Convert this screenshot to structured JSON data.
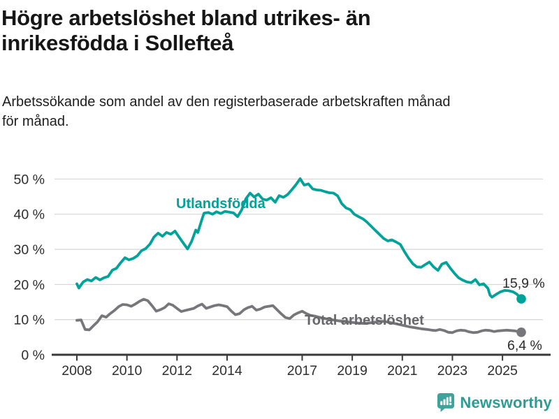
{
  "header": {
    "title_lines": [
      "Högre arbetslöshet bland utrikes- än",
      "inrikesfödda i Sollefteå"
    ],
    "subtitle_lines": [
      "Arbetssökande som andel av den registerbaserade arbetskraften månad",
      "för månad."
    ]
  },
  "chart_data": {
    "type": "line",
    "title": "Högre arbetslöshet bland utrikes- än inrikesfödda i Sollefteå",
    "subtitle": "Arbetssökande som andel av den registerbaserade arbetskraften månad för månad.",
    "unit": "%",
    "grid": "horizontal",
    "legend": "inline-labels",
    "x_axis": {
      "ticks": [
        2008,
        2010,
        2012,
        2014,
        2017,
        2019,
        2021,
        2023,
        2025
      ],
      "labels": [
        "2008",
        "2010",
        "2012",
        "2014",
        "2017",
        "2019",
        "2021",
        "2023",
        "2025"
      ],
      "range": [
        2007.9,
        2025.9
      ]
    },
    "y_axis": {
      "ticks": [
        0,
        10,
        20,
        30,
        40,
        50
      ],
      "labels": [
        "0 %",
        "10 %",
        "20 %",
        "30 %",
        "40 %",
        "50 %"
      ],
      "range": [
        0,
        50
      ]
    },
    "series": [
      {
        "name": "Utlandsfödda",
        "color": "#00A29A",
        "label_color": "#00A29A",
        "end_label": "15,9 %",
        "end_label_color": "#2b2b2b",
        "end_value": 15.9,
        "points": [
          [
            2008.0,
            20.2
          ],
          [
            2008.08,
            19.0
          ],
          [
            2008.25,
            20.7
          ],
          [
            2008.42,
            21.4
          ],
          [
            2008.58,
            21.0
          ],
          [
            2008.75,
            22.0
          ],
          [
            2008.92,
            21.3
          ],
          [
            2009.08,
            21.9
          ],
          [
            2009.25,
            22.3
          ],
          [
            2009.42,
            24.1
          ],
          [
            2009.58,
            24.6
          ],
          [
            2009.75,
            26.2
          ],
          [
            2009.92,
            27.6
          ],
          [
            2010.08,
            27.0
          ],
          [
            2010.25,
            27.4
          ],
          [
            2010.42,
            28.2
          ],
          [
            2010.58,
            29.6
          ],
          [
            2010.75,
            30.2
          ],
          [
            2010.92,
            31.5
          ],
          [
            2011.08,
            33.5
          ],
          [
            2011.25,
            34.6
          ],
          [
            2011.42,
            33.7
          ],
          [
            2011.58,
            34.8
          ],
          [
            2011.75,
            34.3
          ],
          [
            2011.92,
            35.2
          ],
          [
            2012.08,
            33.5
          ],
          [
            2012.25,
            31.8
          ],
          [
            2012.42,
            30.1
          ],
          [
            2012.58,
            32.2
          ],
          [
            2012.75,
            35.5
          ],
          [
            2012.83,
            34.8
          ],
          [
            2013.0,
            38.6
          ],
          [
            2013.08,
            40.3
          ],
          [
            2013.25,
            40.5
          ],
          [
            2013.42,
            40.0
          ],
          [
            2013.58,
            40.7
          ],
          [
            2013.75,
            40.2
          ],
          [
            2013.92,
            40.8
          ],
          [
            2014.08,
            40.6
          ],
          [
            2014.25,
            40.4
          ],
          [
            2014.42,
            39.3
          ],
          [
            2014.58,
            41.2
          ],
          [
            2014.75,
            44.4
          ],
          [
            2014.92,
            46.0
          ],
          [
            2015.08,
            44.9
          ],
          [
            2015.25,
            45.7
          ],
          [
            2015.42,
            44.3
          ],
          [
            2015.58,
            44.0
          ],
          [
            2015.75,
            44.7
          ],
          [
            2015.92,
            43.4
          ],
          [
            2016.08,
            45.3
          ],
          [
            2016.25,
            44.8
          ],
          [
            2016.42,
            45.6
          ],
          [
            2016.58,
            46.9
          ],
          [
            2016.75,
            48.4
          ],
          [
            2016.92,
            50.1
          ],
          [
            2017.08,
            48.3
          ],
          [
            2017.25,
            48.6
          ],
          [
            2017.42,
            47.2
          ],
          [
            2017.58,
            46.9
          ],
          [
            2017.75,
            46.8
          ],
          [
            2017.92,
            46.4
          ],
          [
            2018.08,
            46.1
          ],
          [
            2018.25,
            46.0
          ],
          [
            2018.42,
            45.2
          ],
          [
            2018.58,
            43.0
          ],
          [
            2018.75,
            41.8
          ],
          [
            2018.92,
            41.3
          ],
          [
            2019.08,
            40.0
          ],
          [
            2019.25,
            39.3
          ],
          [
            2019.42,
            38.7
          ],
          [
            2019.58,
            37.8
          ],
          [
            2019.75,
            36.6
          ],
          [
            2019.92,
            35.4
          ],
          [
            2020.08,
            34.3
          ],
          [
            2020.25,
            33.1
          ],
          [
            2020.42,
            32.4
          ],
          [
            2020.58,
            32.7
          ],
          [
            2020.75,
            32.1
          ],
          [
            2020.92,
            31.4
          ],
          [
            2021.08,
            29.4
          ],
          [
            2021.25,
            27.5
          ],
          [
            2021.42,
            25.9
          ],
          [
            2021.58,
            25.0
          ],
          [
            2021.75,
            24.9
          ],
          [
            2021.92,
            25.7
          ],
          [
            2022.08,
            26.4
          ],
          [
            2022.25,
            25.0
          ],
          [
            2022.42,
            24.0
          ],
          [
            2022.58,
            25.8
          ],
          [
            2022.75,
            26.3
          ],
          [
            2022.92,
            24.6
          ],
          [
            2023.08,
            23.2
          ],
          [
            2023.25,
            21.9
          ],
          [
            2023.42,
            21.2
          ],
          [
            2023.58,
            20.7
          ],
          [
            2023.75,
            20.5
          ],
          [
            2023.92,
            21.4
          ],
          [
            2024.08,
            19.9
          ],
          [
            2024.25,
            20.2
          ],
          [
            2024.42,
            18.9
          ],
          [
            2024.5,
            17.0
          ],
          [
            2024.58,
            16.4
          ],
          [
            2024.75,
            17.2
          ],
          [
            2024.92,
            17.9
          ],
          [
            2025.08,
            18.3
          ],
          [
            2025.25,
            18.2
          ],
          [
            2025.42,
            17.9
          ],
          [
            2025.58,
            17.2
          ],
          [
            2025.75,
            15.9
          ]
        ]
      },
      {
        "name": "Total arbetslöshet",
        "color": "#77777B",
        "label_color": "#66666B",
        "end_label": "6,4 %",
        "end_label_color": "#2b2b2b",
        "end_value": 6.4,
        "points": [
          [
            2008.0,
            9.8
          ],
          [
            2008.17,
            9.9
          ],
          [
            2008.33,
            7.2
          ],
          [
            2008.5,
            7.1
          ],
          [
            2008.67,
            8.3
          ],
          [
            2008.83,
            9.4
          ],
          [
            2009.0,
            11.1
          ],
          [
            2009.17,
            10.7
          ],
          [
            2009.33,
            11.7
          ],
          [
            2009.5,
            12.6
          ],
          [
            2009.67,
            13.7
          ],
          [
            2009.83,
            14.3
          ],
          [
            2010.0,
            14.2
          ],
          [
            2010.17,
            13.8
          ],
          [
            2010.33,
            14.4
          ],
          [
            2010.5,
            15.2
          ],
          [
            2010.67,
            15.8
          ],
          [
            2010.83,
            15.4
          ],
          [
            2011.0,
            14.0
          ],
          [
            2011.17,
            12.4
          ],
          [
            2011.33,
            12.8
          ],
          [
            2011.5,
            13.4
          ],
          [
            2011.67,
            14.5
          ],
          [
            2011.83,
            14.1
          ],
          [
            2012.0,
            13.2
          ],
          [
            2012.17,
            12.3
          ],
          [
            2012.33,
            12.6
          ],
          [
            2012.5,
            12.9
          ],
          [
            2012.67,
            13.2
          ],
          [
            2012.83,
            13.9
          ],
          [
            2013.0,
            14.4
          ],
          [
            2013.17,
            13.2
          ],
          [
            2013.33,
            13.6
          ],
          [
            2013.5,
            14.0
          ],
          [
            2013.67,
            14.2
          ],
          [
            2013.83,
            14.0
          ],
          [
            2014.0,
            13.7
          ],
          [
            2014.17,
            12.4
          ],
          [
            2014.33,
            11.4
          ],
          [
            2014.5,
            11.7
          ],
          [
            2014.67,
            12.8
          ],
          [
            2014.83,
            13.4
          ],
          [
            2015.0,
            13.8
          ],
          [
            2015.17,
            12.7
          ],
          [
            2015.33,
            13.0
          ],
          [
            2015.5,
            13.6
          ],
          [
            2015.67,
            13.8
          ],
          [
            2015.83,
            14.0
          ],
          [
            2016.0,
            12.8
          ],
          [
            2016.17,
            11.6
          ],
          [
            2016.33,
            10.6
          ],
          [
            2016.5,
            10.3
          ],
          [
            2016.67,
            11.3
          ],
          [
            2016.83,
            11.9
          ],
          [
            2017.0,
            12.4
          ],
          [
            2017.17,
            11.7
          ],
          [
            2017.33,
            11.2
          ],
          [
            2017.5,
            11.0
          ],
          [
            2017.67,
            10.7
          ],
          [
            2017.83,
            10.4
          ],
          [
            2018.0,
            10.2
          ],
          [
            2018.25,
            9.9
          ],
          [
            2018.5,
            9.6
          ],
          [
            2018.75,
            9.4
          ],
          [
            2019.0,
            9.2
          ],
          [
            2019.25,
            9.0
          ],
          [
            2019.5,
            8.9
          ],
          [
            2019.75,
            9.1
          ],
          [
            2020.0,
            9.4
          ],
          [
            2020.25,
            9.5
          ],
          [
            2020.5,
            9.2
          ],
          [
            2020.75,
            8.8
          ],
          [
            2021.0,
            8.4
          ],
          [
            2021.25,
            8.0
          ],
          [
            2021.5,
            7.7
          ],
          [
            2021.75,
            7.4
          ],
          [
            2022.0,
            7.2
          ],
          [
            2022.17,
            7.0
          ],
          [
            2022.33,
            6.9
          ],
          [
            2022.5,
            7.2
          ],
          [
            2022.67,
            6.9
          ],
          [
            2022.83,
            6.4
          ],
          [
            2023.0,
            6.3
          ],
          [
            2023.17,
            6.8
          ],
          [
            2023.33,
            7.0
          ],
          [
            2023.5,
            6.9
          ],
          [
            2023.67,
            6.5
          ],
          [
            2023.83,
            6.3
          ],
          [
            2024.0,
            6.4
          ],
          [
            2024.17,
            6.8
          ],
          [
            2024.33,
            7.0
          ],
          [
            2024.5,
            6.9
          ],
          [
            2024.67,
            6.6
          ],
          [
            2024.83,
            6.8
          ],
          [
            2025.0,
            6.9
          ],
          [
            2025.17,
            7.0
          ],
          [
            2025.33,
            6.9
          ],
          [
            2025.5,
            6.8
          ],
          [
            2025.75,
            6.4
          ]
        ]
      }
    ]
  },
  "footer": {
    "brand": "Newsworthy",
    "brand_color": "#2E9C95",
    "icon_color": "#3FA39B"
  }
}
